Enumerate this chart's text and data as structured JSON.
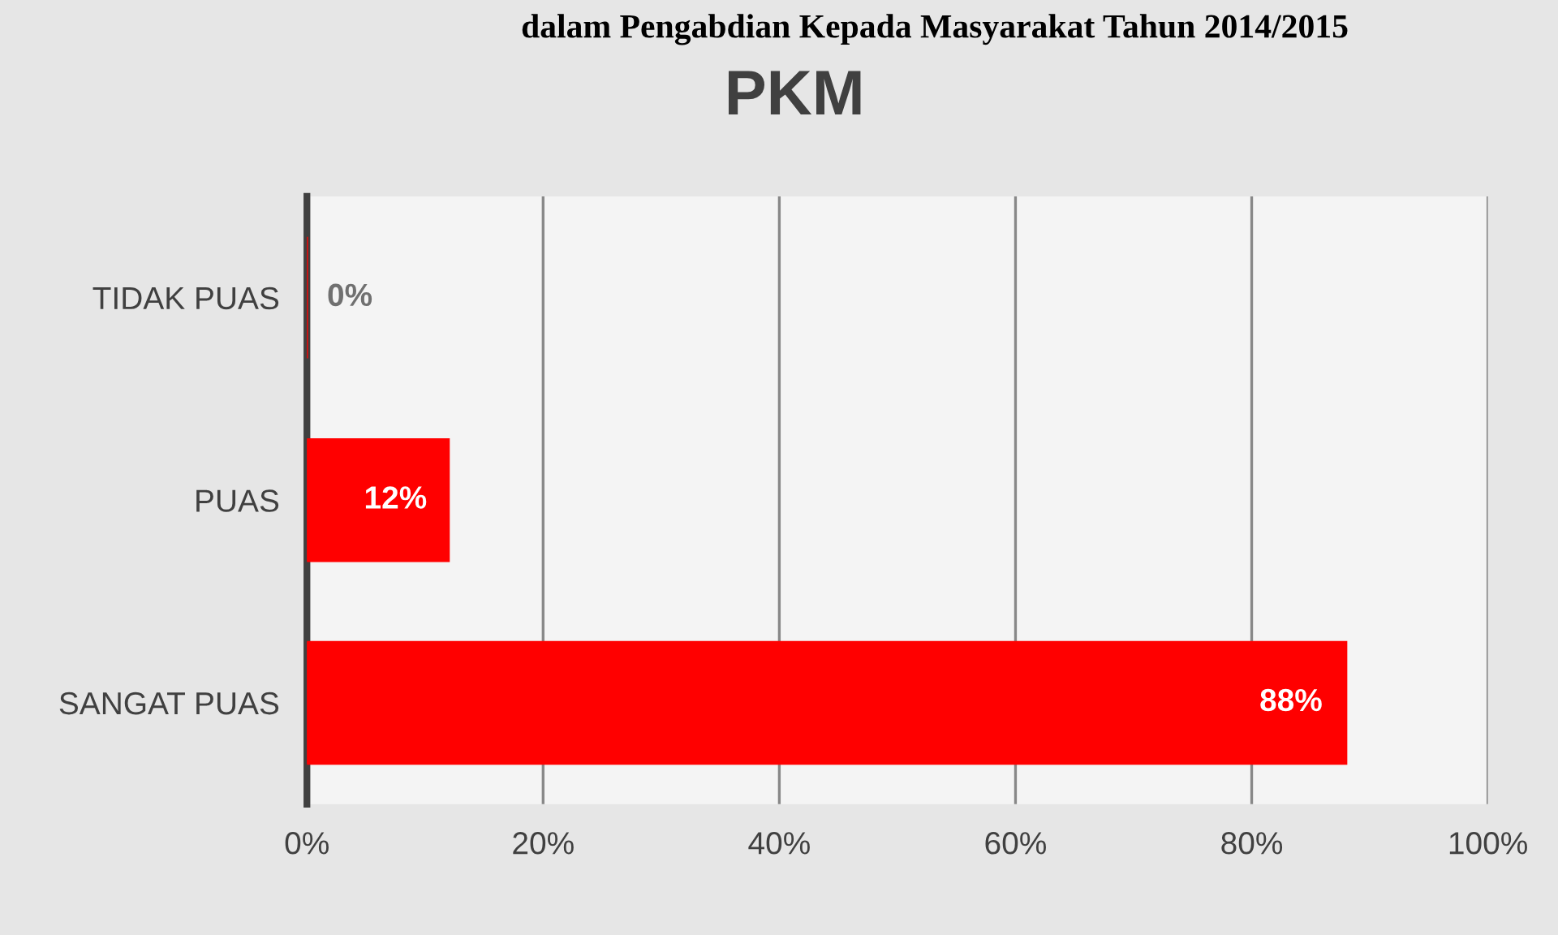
{
  "chart_data": {
    "type": "bar",
    "orientation": "horizontal",
    "title": "PKM",
    "annotations": [
      "dalam Pengabdian Kepada Masyarakat Tahun 2014/2015"
    ],
    "categories": [
      "TIDAK PUAS",
      "PUAS",
      "SANGAT PUAS"
    ],
    "values": [
      0,
      12,
      88
    ],
    "color": "#ff0000",
    "value_labels": [
      "0%",
      "12%",
      "88%"
    ],
    "xlim": [
      0,
      100
    ],
    "xticks": [
      {
        "value": 0,
        "label": "0%"
      },
      {
        "value": 20,
        "label": "20%"
      },
      {
        "value": 40,
        "label": "40%"
      },
      {
        "value": 60,
        "label": "60%"
      },
      {
        "value": 80,
        "label": "80%"
      },
      {
        "value": 100,
        "label": "100%"
      }
    ],
    "grid": "x",
    "legend": false
  }
}
